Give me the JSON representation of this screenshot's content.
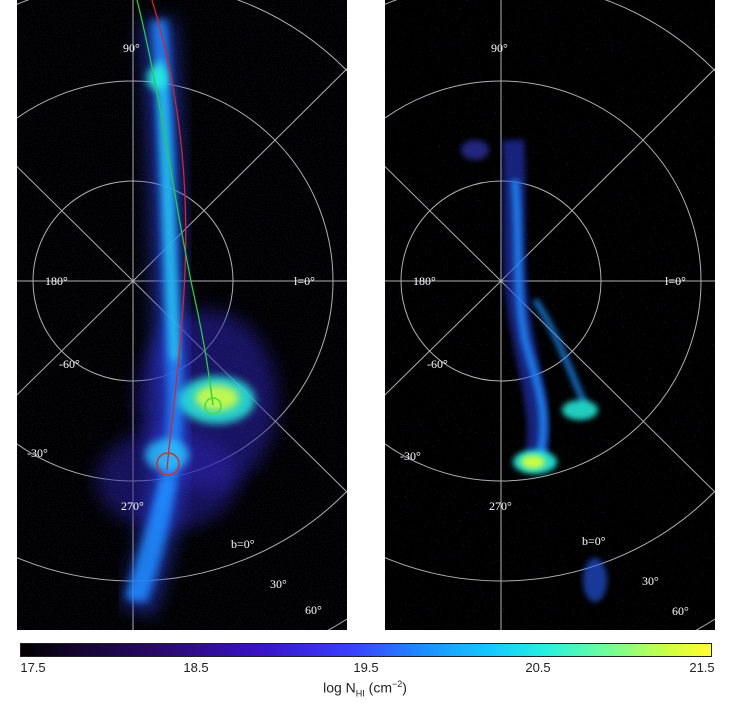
{
  "left_panel": {
    "labels": {
      "b90": "90°",
      "l180": "180°",
      "l0": "l=0°",
      "bm60": "-60°",
      "bm30": "-30°",
      "l270": "270°",
      "b0": "b=0°",
      "b30": "30°",
      "b60": "60°"
    }
  },
  "right_panel": {
    "labels": {
      "b90": "90°",
      "l180": "180°",
      "l0": "l=0°",
      "bm60": "-60°",
      "bm30": "-30°",
      "l270": "270°",
      "b0": "b=0°",
      "b30": "30°",
      "b60": "60°"
    }
  },
  "colorbar": {
    "ticks": [
      "17.5",
      "18.5",
      "19.5",
      "20.5",
      "21.5"
    ],
    "label_main": "log N",
    "label_sub": "HI",
    "label_unit_open": " (cm",
    "label_exp": "−2",
    "label_unit_close": ")",
    "range": [
      17.5,
      21.5
    ],
    "colormap": [
      "#000000",
      "#2a0a6a",
      "#3a40ff",
      "#14c8ff",
      "#78ff90",
      "#ffff30"
    ]
  },
  "colors": {
    "grid": "#b0b0b0",
    "track_red": "#e0202a",
    "track_green": "#20d040",
    "circle_red": "#e02a2a",
    "circle_green": "#40e040"
  }
}
